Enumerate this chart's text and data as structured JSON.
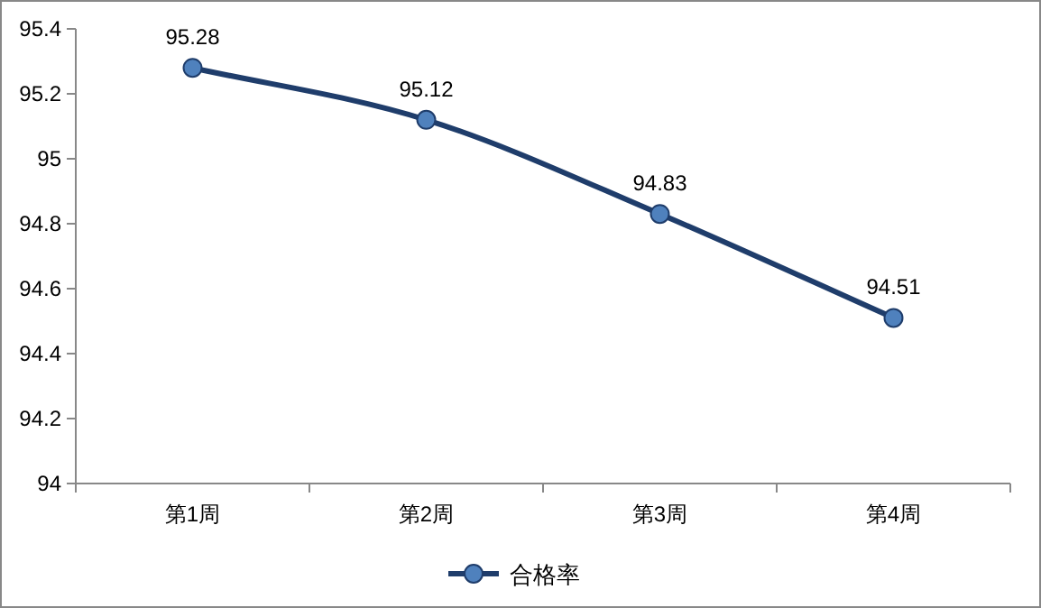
{
  "chart_data": {
    "type": "line",
    "categories": [
      "第1周",
      "第2周",
      "第3周",
      "第4周"
    ],
    "series": [
      {
        "name": "合格率",
        "color": "#1f3d6b",
        "values": [
          95.28,
          95.12,
          94.83,
          94.51
        ]
      }
    ],
    "ylim": [
      94,
      95.4
    ],
    "yticks": [
      94,
      94.2,
      94.4,
      94.6,
      94.8,
      95,
      95.2,
      95.4
    ],
    "data_labels": true,
    "marker": "circle",
    "legend": "bottom",
    "grid": false
  }
}
